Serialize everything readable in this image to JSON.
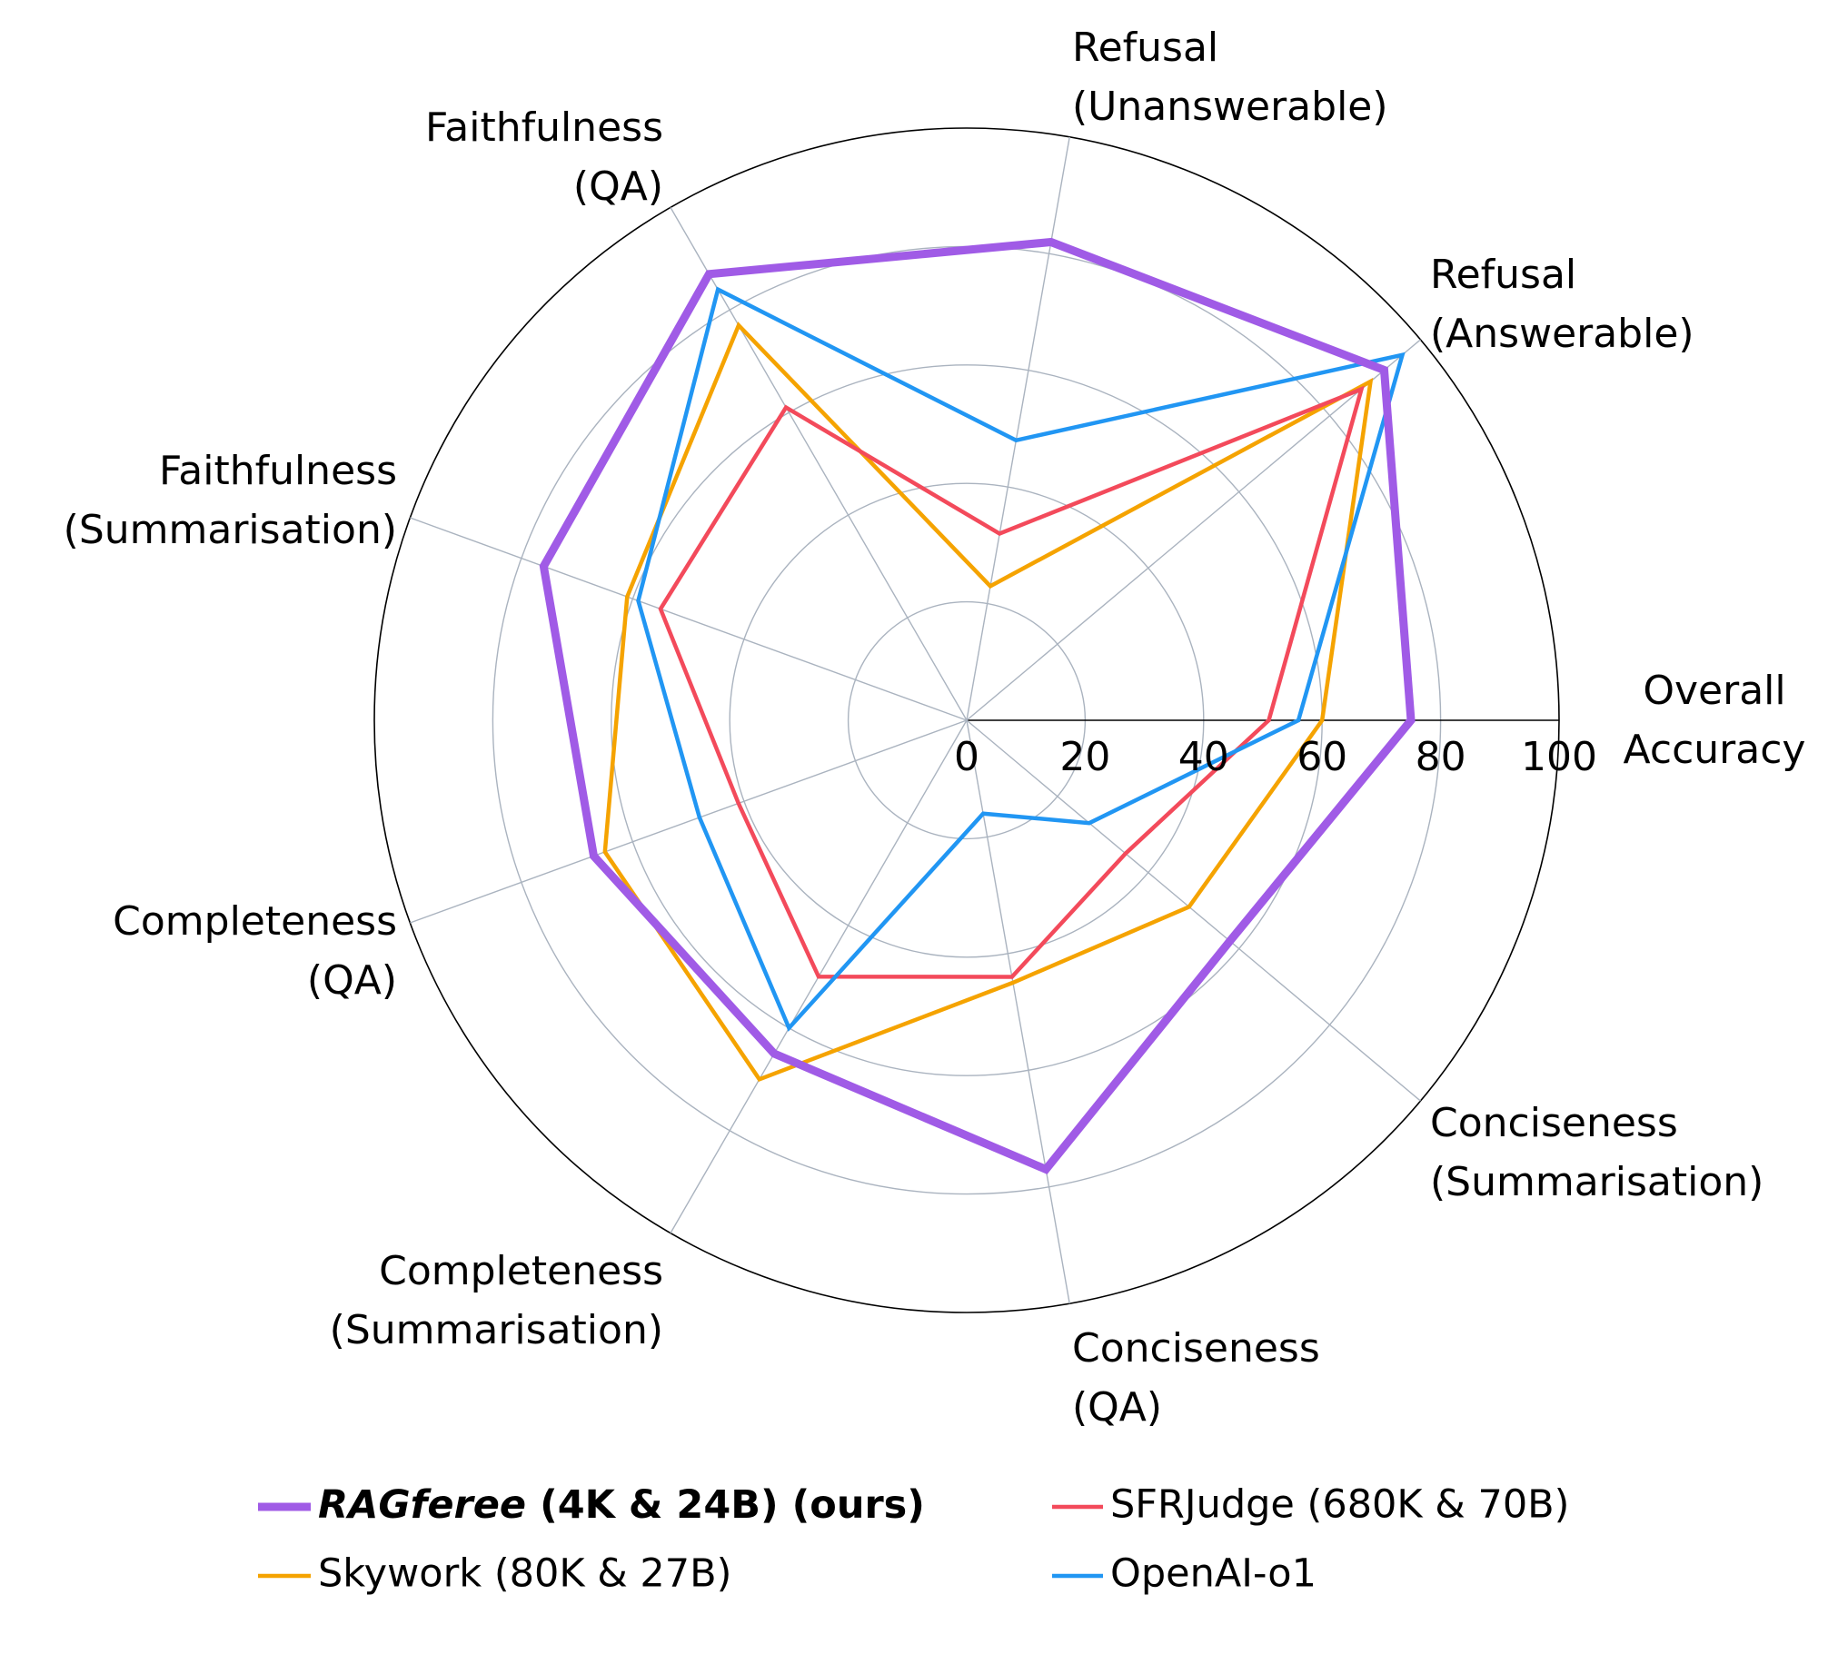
{
  "chart_data": {
    "type": "radar",
    "axes": [
      [
        "Overall",
        "Accuracy"
      ],
      [
        "Refusal",
        "(Answerable)"
      ],
      [
        "Refusal",
        "(Unanswerable)"
      ],
      [
        "Faithfulness",
        "(QA)"
      ],
      [
        "Faithfulness",
        "(Summarisation)"
      ],
      [
        "Completeness",
        "(QA)"
      ],
      [
        "Completeness",
        "(Summarisation)"
      ],
      [
        "Conciseness",
        "(QA)"
      ],
      [
        "Conciseness",
        "(Summarisation)"
      ]
    ],
    "rlim": [
      0,
      100
    ],
    "rticks": [
      "0",
      "20",
      "40",
      "60",
      "80",
      "100"
    ],
    "grid": true,
    "legend_placement": "bottom",
    "series": [
      {
        "name_em": "RAGferee",
        "name": " (4K & 24B) (ours)",
        "color": "#a05be6",
        "values": [
          75,
          92,
          82,
          87,
          76,
          67,
          65,
          77,
          58
        ]
      },
      {
        "name": "SFRJudge (680K & 70B)",
        "color": "#f34a5b",
        "values": [
          51,
          87,
          32,
          61,
          55,
          41,
          50,
          44,
          35
        ]
      },
      {
        "name": "Skywork (80K & 27B)",
        "color": "#f5a300",
        "values": [
          60,
          89,
          23,
          77,
          61,
          65,
          70,
          45,
          49
        ]
      },
      {
        "name": "OpenAI-o1",
        "color": "#2196f3",
        "values": [
          56,
          96,
          48,
          84,
          59,
          48,
          60,
          16,
          27
        ]
      }
    ]
  }
}
